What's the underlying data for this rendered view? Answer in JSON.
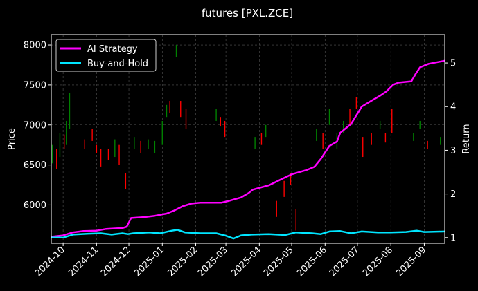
{
  "chart_data": {
    "type": "line",
    "title": "futures [PXL.ZCE]",
    "ylabel_left": "Price",
    "ylabel_right": "Return",
    "grid": true,
    "legend_position": "upper-left",
    "x_range": [
      "2024-09-20",
      "2025-09-20"
    ],
    "y_left_range": [
      5520,
      8130
    ],
    "y_right_range": [
      0.87,
      5.65
    ],
    "x_ticks": [
      "2024-10",
      "2024-11",
      "2024-12",
      "2025-01",
      "2025-02",
      "2025-03",
      "2025-04",
      "2025-05",
      "2025-06",
      "2025-07",
      "2025-08",
      "2025-09"
    ],
    "y_left_ticks": [
      "6000",
      "6500",
      "7000",
      "7500",
      "8000"
    ],
    "y_right_ticks": [
      "1",
      "2",
      "3",
      "4",
      "5"
    ],
    "colors": {
      "ai_strategy": "#ff00ff",
      "buy_and_hold": "#00e5ff",
      "candle_up": "#008000",
      "candle_down": "#ff0000",
      "grid": "#555555"
    },
    "series": [
      {
        "name": "AI Strategy",
        "axis": "right",
        "points": [
          [
            "2024-09-20",
            1.02
          ],
          [
            "2024-10-01",
            1.05
          ],
          [
            "2024-10-10",
            1.12
          ],
          [
            "2024-10-20",
            1.15
          ],
          [
            "2024-11-01",
            1.16
          ],
          [
            "2024-11-10",
            1.2
          ],
          [
            "2024-11-25",
            1.22
          ],
          [
            "2024-11-29",
            1.25
          ],
          [
            "2024-12-03",
            1.45
          ],
          [
            "2024-12-15",
            1.47
          ],
          [
            "2024-12-25",
            1.5
          ],
          [
            "2025-01-05",
            1.55
          ],
          [
            "2025-01-12",
            1.62
          ],
          [
            "2025-01-20",
            1.72
          ],
          [
            "2025-01-28",
            1.78
          ],
          [
            "2025-02-05",
            1.8
          ],
          [
            "2025-02-25",
            1.8
          ],
          [
            "2025-03-05",
            1.85
          ],
          [
            "2025-03-15",
            1.92
          ],
          [
            "2025-03-22",
            2.02
          ],
          [
            "2025-03-26",
            2.1
          ],
          [
            "2025-04-10",
            2.2
          ],
          [
            "2025-04-20",
            2.32
          ],
          [
            "2025-05-01",
            2.45
          ],
          [
            "2025-05-15",
            2.55
          ],
          [
            "2025-05-22",
            2.62
          ],
          [
            "2025-05-28",
            2.8
          ],
          [
            "2025-06-05",
            3.1
          ],
          [
            "2025-06-12",
            3.2
          ],
          [
            "2025-06-15",
            3.4
          ],
          [
            "2025-06-25",
            3.6
          ],
          [
            "2025-07-05",
            4.0
          ],
          [
            "2025-07-15",
            4.15
          ],
          [
            "2025-07-22",
            4.25
          ],
          [
            "2025-07-28",
            4.35
          ],
          [
            "2025-08-03",
            4.5
          ],
          [
            "2025-08-08",
            4.55
          ],
          [
            "2025-08-20",
            4.58
          ],
          [
            "2025-08-24",
            4.75
          ],
          [
            "2025-08-28",
            4.9
          ],
          [
            "2025-09-05",
            4.98
          ],
          [
            "2025-09-20",
            5.05
          ]
        ]
      },
      {
        "name": "Buy-and-Hold",
        "axis": "right",
        "points": [
          [
            "2024-09-20",
            1.0
          ],
          [
            "2024-10-01",
            1.0
          ],
          [
            "2024-10-10",
            1.07
          ],
          [
            "2024-10-25",
            1.09
          ],
          [
            "2024-11-05",
            1.1
          ],
          [
            "2024-11-15",
            1.07
          ],
          [
            "2024-11-25",
            1.1
          ],
          [
            "2024-11-30",
            1.08
          ],
          [
            "2024-12-05",
            1.1
          ],
          [
            "2024-12-20",
            1.12
          ],
          [
            "2024-12-30",
            1.1
          ],
          [
            "2025-01-10",
            1.16
          ],
          [
            "2025-01-15",
            1.18
          ],
          [
            "2025-01-22",
            1.12
          ],
          [
            "2025-02-05",
            1.1
          ],
          [
            "2025-02-20",
            1.1
          ],
          [
            "2025-02-28",
            1.05
          ],
          [
            "2025-03-08",
            0.98
          ],
          [
            "2025-03-15",
            1.05
          ],
          [
            "2025-03-25",
            1.07
          ],
          [
            "2025-04-10",
            1.08
          ],
          [
            "2025-04-25",
            1.06
          ],
          [
            "2025-05-05",
            1.12
          ],
          [
            "2025-05-20",
            1.1
          ],
          [
            "2025-05-28",
            1.08
          ],
          [
            "2025-06-05",
            1.14
          ],
          [
            "2025-06-15",
            1.15
          ],
          [
            "2025-06-25",
            1.1
          ],
          [
            "2025-07-05",
            1.14
          ],
          [
            "2025-07-20",
            1.12
          ],
          [
            "2025-08-01",
            1.12
          ],
          [
            "2025-08-15",
            1.13
          ],
          [
            "2025-08-25",
            1.16
          ],
          [
            "2025-09-01",
            1.13
          ],
          [
            "2025-09-20",
            1.14
          ]
        ]
      }
    ],
    "candles": [
      [
        "2024-09-21",
        6520,
        6750
      ],
      [
        "2024-09-25",
        6700,
        6450
      ],
      [
        "2024-09-28",
        6600,
        6900
      ],
      [
        "2024-10-02",
        6880,
        6700
      ],
      [
        "2024-10-04",
        6750,
        7050
      ],
      [
        "2024-10-07",
        6950,
        7400
      ],
      [
        "2024-10-21",
        6820,
        6700
      ],
      [
        "2024-10-28",
        6950,
        6800
      ],
      [
        "2024-11-01",
        6750,
        6650
      ],
      [
        "2024-11-05",
        6700,
        6480
      ],
      [
        "2024-11-12",
        6700,
        6560
      ],
      [
        "2024-11-18",
        6600,
        6820
      ],
      [
        "2024-11-22",
        6750,
        6500
      ],
      [
        "2024-11-28",
        6400,
        6200
      ],
      [
        "2024-12-06",
        6700,
        6850
      ],
      [
        "2024-12-12",
        6800,
        6650
      ],
      [
        "2024-12-19",
        6700,
        6820
      ],
      [
        "2024-12-25",
        6650,
        6800
      ],
      [
        "2025-01-01",
        6750,
        7050
      ],
      [
        "2025-01-05",
        7100,
        7250
      ],
      [
        "2025-01-08",
        7300,
        7150
      ],
      [
        "2025-01-14",
        7850,
        8000
      ],
      [
        "2025-01-18",
        7300,
        7100
      ],
      [
        "2025-01-23",
        7200,
        6950
      ],
      [
        "2025-02-20",
        7050,
        7200
      ],
      [
        "2025-02-24",
        7100,
        6980
      ],
      [
        "2025-02-28",
        7050,
        6850
      ],
      [
        "2025-03-28",
        6700,
        6850
      ],
      [
        "2025-04-03",
        6900,
        6750
      ],
      [
        "2025-04-07",
        6850,
        7000
      ],
      [
        "2025-04-17",
        6050,
        5850
      ],
      [
        "2025-04-24",
        6300,
        6100
      ],
      [
        "2025-04-30",
        6400,
        6250
      ],
      [
        "2025-05-05",
        5950,
        5680
      ],
      [
        "2025-05-24",
        6800,
        6950
      ],
      [
        "2025-05-30",
        6900,
        6700
      ],
      [
        "2025-06-05",
        7000,
        7200
      ],
      [
        "2025-06-12",
        6700,
        6900
      ],
      [
        "2025-06-18",
        6900,
        7050
      ],
      [
        "2025-06-24",
        7200,
        7000
      ],
      [
        "2025-06-30",
        7350,
        7200
      ],
      [
        "2025-07-06",
        6850,
        6600
      ],
      [
        "2025-07-14",
        6900,
        6750
      ],
      [
        "2025-07-22",
        6950,
        7050
      ],
      [
        "2025-07-27",
        6900,
        6780
      ],
      [
        "2025-08-02",
        7200,
        6900
      ],
      [
        "2025-08-22",
        6800,
        6900
      ],
      [
        "2025-08-28",
        6950,
        7050
      ],
      [
        "2025-09-04",
        6800,
        6700
      ],
      [
        "2025-09-16",
        6750,
        6850
      ]
    ]
  }
}
